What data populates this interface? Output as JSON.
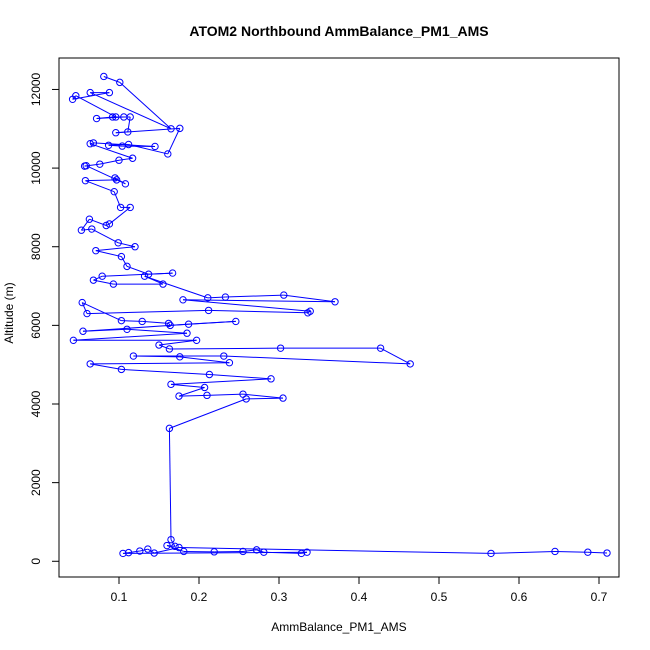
{
  "chart_data": {
    "type": "scatter",
    "title": "ATOM2 Northbound AmmBalance_PM1_AMS",
    "xlabel": "AmmBalance_PM1_AMS",
    "ylabel": "Altitude (m)",
    "xlim": [
      0.025,
      0.725
    ],
    "ylim": [
      -400,
      12800
    ],
    "xticks": [
      0.1,
      0.2,
      0.3,
      0.4,
      0.5,
      0.6,
      0.7
    ],
    "xtick_labels": [
      "0.1",
      "0.2",
      "0.3",
      "0.4",
      "0.5",
      "0.6",
      "0.7"
    ],
    "yticks": [
      0,
      2000,
      4000,
      6000,
      8000,
      10000,
      12000
    ],
    "ytick_labels": [
      "0",
      "2000",
      "4000",
      "6000",
      "8000",
      "10000",
      "12000"
    ],
    "grid": false,
    "color": "#0000ff",
    "marker": "open-circle",
    "connected": true,
    "series": [
      {
        "points": [
          [
            0.081,
            12330
          ],
          [
            0.101,
            12180
          ],
          [
            0.165,
            11000
          ],
          [
            0.064,
            11920
          ],
          [
            0.088,
            11920
          ],
          [
            0.042,
            11750
          ],
          [
            0.046,
            11840
          ],
          [
            0.096,
            11300
          ],
          [
            0.106,
            11300
          ],
          [
            0.072,
            11260
          ],
          [
            0.092,
            11300
          ],
          [
            0.114,
            11300
          ],
          [
            0.111,
            10920
          ],
          [
            0.096,
            10900
          ],
          [
            0.176,
            11010
          ],
          [
            0.161,
            10360
          ],
          [
            0.112,
            10600
          ],
          [
            0.087,
            10580
          ],
          [
            0.104,
            10560
          ],
          [
            0.145,
            10550
          ],
          [
            0.068,
            10640
          ],
          [
            0.064,
            10620
          ],
          [
            0.117,
            10250
          ],
          [
            0.1,
            10200
          ],
          [
            0.076,
            10100
          ],
          [
            0.057,
            10050
          ],
          [
            0.059,
            10060
          ],
          [
            0.108,
            9600
          ],
          [
            0.095,
            9750
          ],
          [
            0.097,
            9700
          ],
          [
            0.058,
            9680
          ],
          [
            0.094,
            9400
          ],
          [
            0.102,
            9000
          ],
          [
            0.114,
            9000
          ],
          [
            0.088,
            8580
          ],
          [
            0.084,
            8540
          ],
          [
            0.063,
            8700
          ],
          [
            0.053,
            8420
          ],
          [
            0.066,
            8450
          ],
          [
            0.099,
            8100
          ],
          [
            0.12,
            8000
          ],
          [
            0.071,
            7900
          ],
          [
            0.103,
            7750
          ],
          [
            0.11,
            7500
          ],
          [
            0.137,
            7300
          ],
          [
            0.167,
            7330
          ],
          [
            0.079,
            7250
          ],
          [
            0.068,
            7150
          ],
          [
            0.093,
            7050
          ],
          [
            0.155,
            7050
          ],
          [
            0.132,
            7250
          ],
          [
            0.211,
            6700
          ],
          [
            0.233,
            6720
          ],
          [
            0.306,
            6770
          ],
          [
            0.37,
            6600
          ],
          [
            0.18,
            6650
          ],
          [
            0.339,
            6360
          ],
          [
            0.336,
            6320
          ],
          [
            0.212,
            6380
          ],
          [
            0.06,
            6300
          ],
          [
            0.054,
            6580
          ],
          [
            0.103,
            6120
          ],
          [
            0.129,
            6100
          ],
          [
            0.162,
            6050
          ],
          [
            0.164,
            6000
          ],
          [
            0.246,
            6100
          ],
          [
            0.187,
            6030
          ],
          [
            0.055,
            5850
          ],
          [
            0.11,
            5900
          ],
          [
            0.185,
            5800
          ],
          [
            0.043,
            5620
          ],
          [
            0.197,
            5620
          ],
          [
            0.15,
            5500
          ],
          [
            0.163,
            5400
          ],
          [
            0.302,
            5420
          ],
          [
            0.427,
            5420
          ],
          [
            0.464,
            5020
          ],
          [
            0.231,
            5220
          ],
          [
            0.118,
            5220
          ],
          [
            0.176,
            5200
          ],
          [
            0.238,
            5050
          ],
          [
            0.064,
            5020
          ],
          [
            0.103,
            4880
          ],
          [
            0.213,
            4750
          ],
          [
            0.29,
            4640
          ],
          [
            0.165,
            4500
          ],
          [
            0.207,
            4420
          ],
          [
            0.175,
            4200
          ],
          [
            0.21,
            4220
          ],
          [
            0.255,
            4250
          ],
          [
            0.305,
            4150
          ],
          [
            0.259,
            4130
          ],
          [
            0.163,
            3380
          ],
          [
            0.165,
            550
          ],
          [
            0.17,
            380
          ],
          [
            0.16,
            400
          ],
          [
            0.181,
            250
          ],
          [
            0.219,
            240
          ],
          [
            0.255,
            250
          ],
          [
            0.272,
            290
          ],
          [
            0.281,
            230
          ],
          [
            0.328,
            200
          ],
          [
            0.335,
            230
          ],
          [
            0.105,
            200
          ],
          [
            0.112,
            220
          ],
          [
            0.126,
            260
          ],
          [
            0.136,
            310
          ],
          [
            0.144,
            210
          ],
          [
            0.175,
            350
          ],
          [
            0.565,
            200
          ],
          [
            0.645,
            250
          ],
          [
            0.686,
            230
          ],
          [
            0.71,
            210
          ]
        ]
      }
    ]
  }
}
